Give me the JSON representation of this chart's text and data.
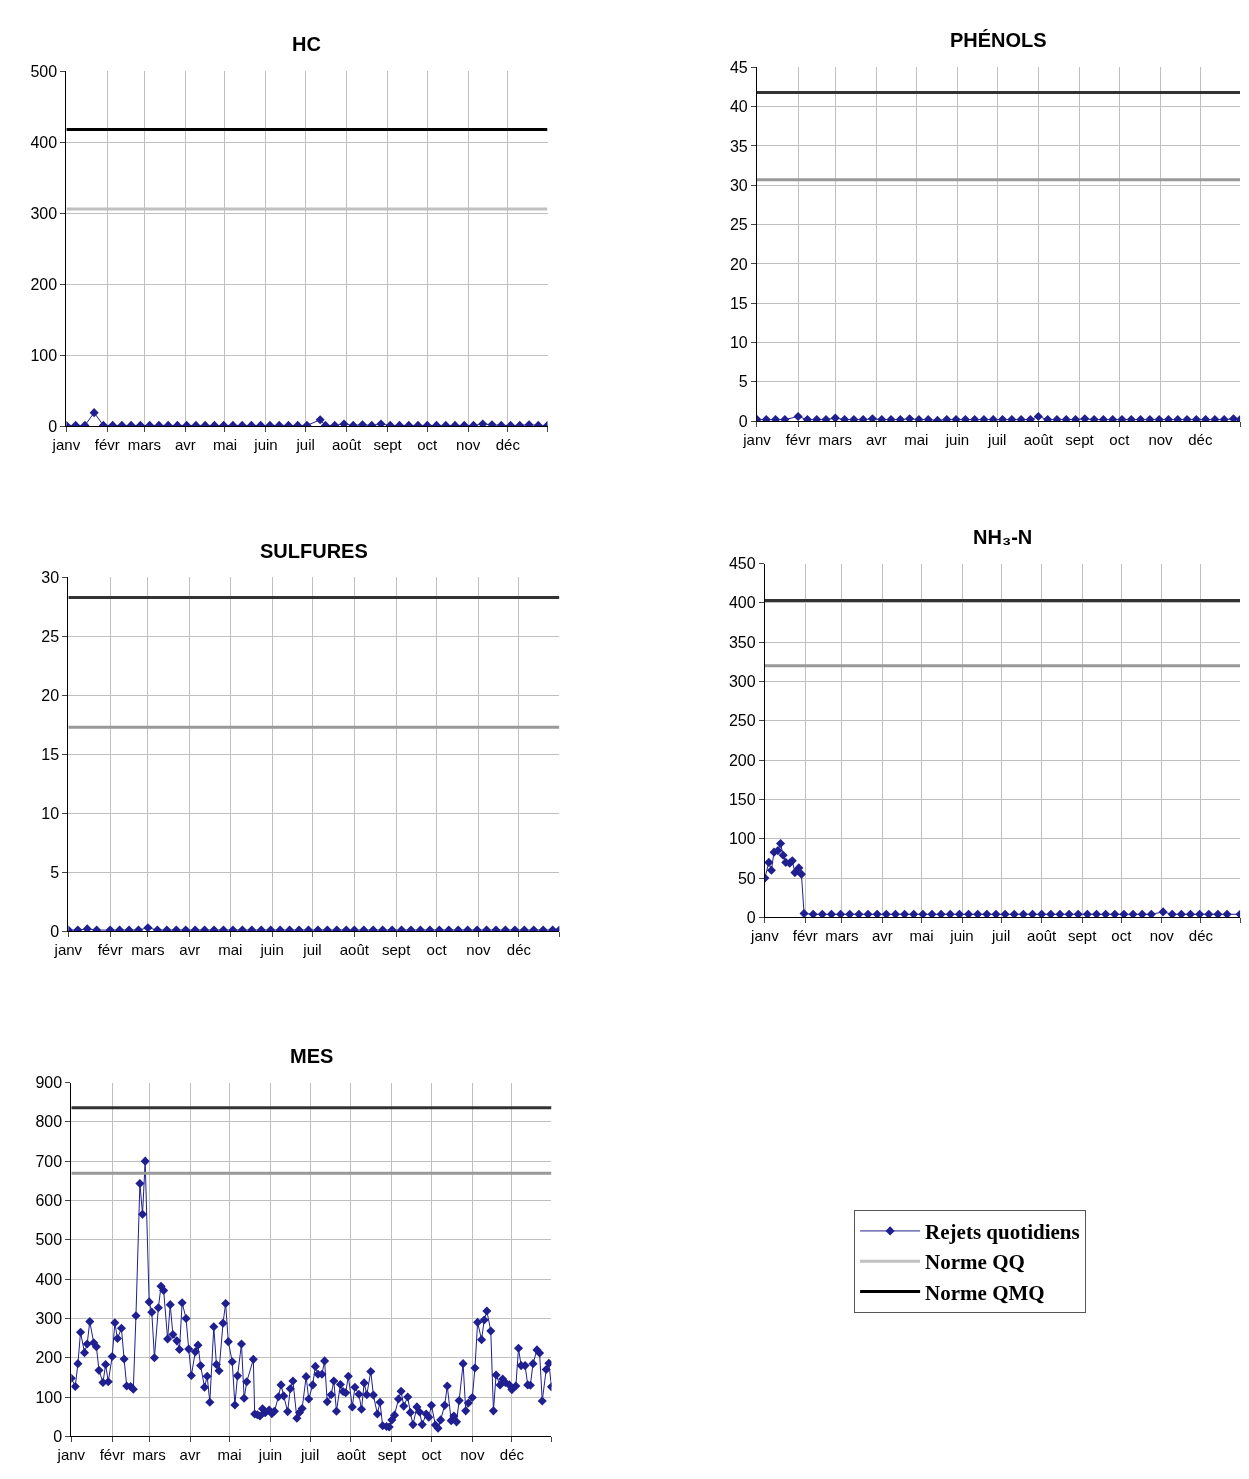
{
  "chart_data": [
    {
      "type": "line",
      "title": "HC",
      "legend": "bottom right",
      "xlim": [
        "--01-01",
        "--12-31"
      ],
      "ylim": [
        0,
        500
      ],
      "yticks": [
        0,
        100,
        200,
        300,
        400,
        500
      ],
      "xticks": [
        {
          "value": "--01-01",
          "label": "janv"
        },
        {
          "value": "--02-01",
          "label": "févr"
        },
        {
          "value": "--03-01",
          "label": "mars"
        },
        {
          "value": "--04-01",
          "label": "avr"
        },
        {
          "value": "--05-01",
          "label": "mai"
        },
        {
          "value": "--06-01",
          "label": "juin"
        },
        {
          "value": "--07-01",
          "label": "juil"
        },
        {
          "value": "--08-01",
          "label": "août"
        },
        {
          "value": "--09-01",
          "label": "sept"
        },
        {
          "value": "--10-01",
          "label": "oct"
        },
        {
          "value": "--11-01",
          "label": "nov"
        },
        {
          "value": "--12-01",
          "label": "déc"
        },
        {
          "value": "--12-31",
          "label": null
        }
      ],
      "grid": true,
      "marker": "diamond",
      "line_style": "solid",
      "series": [
        {
          "name": "Rejets quotidiens",
          "color": "#1f1f8f",
          "x": [
            "--01-01",
            "--01-08",
            "--01-15",
            "--01-22",
            "--01-29",
            "--02-05",
            "--02-12",
            "--02-19",
            "--02-26",
            "--03-05",
            "--03-12",
            "--03-19",
            "--03-26",
            "--04-02",
            "--04-09",
            "--04-16",
            "--04-23",
            "--04-30",
            "--05-07",
            "--05-14",
            "--05-21",
            "--05-28",
            "--06-04",
            "--06-11",
            "--06-18",
            "--06-25",
            "--07-02",
            "--07-12",
            "--07-16",
            "--07-23",
            "--07-30",
            "--08-06",
            "--08-13",
            "--08-20",
            "--08-27",
            "--09-03",
            "--09-10",
            "--09-17",
            "--09-24",
            "--10-01",
            "--10-08",
            "--10-15",
            "--10-22",
            "--10-29",
            "--11-05",
            "--11-12",
            "--11-19",
            "--11-26",
            "--12-03",
            "--12-10",
            "--12-17",
            "--12-24",
            "--12-31"
          ],
          "values": [
            1,
            1,
            1,
            19,
            1,
            1,
            1,
            1,
            1,
            1,
            1,
            1,
            1,
            1,
            1,
            1,
            1,
            1,
            1,
            1,
            1,
            1,
            1,
            1,
            1,
            1,
            1,
            9,
            1,
            1,
            3,
            1,
            2,
            1,
            3,
            1,
            1,
            1,
            1,
            1,
            1,
            1,
            1,
            1,
            1,
            3,
            2,
            1,
            1,
            1,
            2,
            1,
            1
          ]
        }
      ],
      "ref_lines": [
        {
          "axis": "y",
          "value": 306,
          "label": "Norme QQ",
          "color": "#c0c0c0"
        },
        {
          "axis": "y",
          "value": 418,
          "label": "Norme QMQ",
          "color": "#000000"
        }
      ]
    },
    {
      "type": "line",
      "title": "PHÉNOLS",
      "xlim": [
        "--01-01",
        "--12-31"
      ],
      "ylim": [
        0,
        45
      ],
      "yticks": [
        0,
        5,
        10,
        15,
        20,
        25,
        30,
        35,
        40,
        45
      ],
      "xticks": [
        {
          "value": "--01-01",
          "label": "janv"
        },
        {
          "value": "--02-01",
          "label": "févr"
        },
        {
          "value": "--03-01",
          "label": "mars"
        },
        {
          "value": "--04-01",
          "label": "avr"
        },
        {
          "value": "--05-01",
          "label": "mai"
        },
        {
          "value": "--06-01",
          "label": "juin"
        },
        {
          "value": "--07-01",
          "label": "juil"
        },
        {
          "value": "--08-01",
          "label": "août"
        },
        {
          "value": "--09-01",
          "label": "sept"
        },
        {
          "value": "--10-01",
          "label": "oct"
        },
        {
          "value": "--11-01",
          "label": "nov"
        },
        {
          "value": "--12-01",
          "label": "déc"
        },
        {
          "value": "--12-31",
          "label": null
        }
      ],
      "grid": true,
      "marker": "diamond",
      "line_style": "solid",
      "series": [
        {
          "name": "Rejets quotidiens",
          "color": "#1f1f8f",
          "x": [
            "--01-01",
            "--01-08",
            "--01-15",
            "--01-22",
            "--02-01",
            "--02-08",
            "--02-15",
            "--02-22",
            "--03-01",
            "--03-08",
            "--03-15",
            "--03-22",
            "--03-29",
            "--04-05",
            "--04-12",
            "--04-19",
            "--04-26",
            "--05-03",
            "--05-10",
            "--05-17",
            "--05-24",
            "--05-31",
            "--06-07",
            "--06-14",
            "--06-21",
            "--06-28",
            "--07-05",
            "--07-12",
            "--07-19",
            "--07-26",
            "--08-01",
            "--08-08",
            "--08-15",
            "--08-22",
            "--08-29",
            "--09-05",
            "--09-12",
            "--09-19",
            "--09-26",
            "--10-03",
            "--10-10",
            "--10-17",
            "--10-24",
            "--10-31",
            "--11-07",
            "--11-14",
            "--11-21",
            "--11-28",
            "--12-05",
            "--12-12",
            "--12-19",
            "--12-26",
            "--12-31"
          ],
          "values": [
            0.2,
            0.2,
            0.2,
            0.2,
            0.6,
            0.2,
            0.2,
            0.2,
            0.4,
            0.2,
            0.2,
            0.2,
            0.3,
            0.2,
            0.2,
            0.2,
            0.3,
            0.2,
            0.2,
            0.1,
            0.2,
            0.2,
            0.2,
            0.2,
            0.2,
            0.2,
            0.2,
            0.2,
            0.2,
            0.2,
            0.6,
            0.2,
            0.2,
            0.2,
            0.2,
            0.3,
            0.2,
            0.2,
            0.2,
            0.2,
            0.2,
            0.2,
            0.2,
            0.2,
            0.2,
            0.2,
            0.2,
            0.2,
            0.2,
            0.2,
            0.2,
            0.3,
            0.2
          ]
        }
      ],
      "ref_lines": [
        {
          "axis": "y",
          "value": 30.7,
          "color": "#999999"
        },
        {
          "axis": "y",
          "value": 41.8,
          "color": "#333333"
        }
      ]
    },
    {
      "type": "line",
      "title": "SULFURES",
      "xlim": [
        "--01-01",
        "--12-31"
      ],
      "ylim": [
        0,
        30
      ],
      "yticks": [
        0,
        5,
        10,
        15,
        20,
        25,
        30
      ],
      "xticks": [
        {
          "value": "--01-01",
          "label": "janv"
        },
        {
          "value": "--02-01",
          "label": "févr"
        },
        {
          "value": "--03-01",
          "label": "mars"
        },
        {
          "value": "--04-01",
          "label": "avr"
        },
        {
          "value": "--05-01",
          "label": "mai"
        },
        {
          "value": "--06-01",
          "label": "juin"
        },
        {
          "value": "--07-01",
          "label": "juil"
        },
        {
          "value": "--08-01",
          "label": "août"
        },
        {
          "value": "--09-01",
          "label": "sept"
        },
        {
          "value": "--10-01",
          "label": "oct"
        },
        {
          "value": "--11-01",
          "label": "nov"
        },
        {
          "value": "--12-01",
          "label": "déc"
        },
        {
          "value": "--12-31",
          "label": null
        }
      ],
      "grid": true,
      "marker": "diamond",
      "line_style": "solid",
      "series": [
        {
          "name": "Rejets quotidiens",
          "color": "#1f1f8f",
          "x": [
            "--01-01",
            "--01-08",
            "--01-15",
            "--01-22",
            "--02-01",
            "--02-08",
            "--02-15",
            "--02-22",
            "--03-01",
            "--03-08",
            "--03-15",
            "--03-22",
            "--03-29",
            "--04-05",
            "--04-12",
            "--04-19",
            "--04-26",
            "--05-03",
            "--05-10",
            "--05-17",
            "--05-24",
            "--05-31",
            "--06-07",
            "--06-14",
            "--06-21",
            "--06-28",
            "--07-05",
            "--07-12",
            "--07-19",
            "--07-26",
            "--08-01",
            "--08-08",
            "--08-15",
            "--08-22",
            "--08-29",
            "--09-05",
            "--09-12",
            "--09-19",
            "--09-26",
            "--10-03",
            "--10-10",
            "--10-17",
            "--10-24",
            "--10-31",
            "--11-07",
            "--11-14",
            "--11-21",
            "--11-28",
            "--12-05",
            "--12-12",
            "--12-19",
            "--12-26",
            "--12-31"
          ],
          "values": [
            0.1,
            0.1,
            0.2,
            0.1,
            0.1,
            0.1,
            0.1,
            0.1,
            0.3,
            0.1,
            0.1,
            0.1,
            0.1,
            0.1,
            0.1,
            0.1,
            0.1,
            0.1,
            0.1,
            0.1,
            0.1,
            0.1,
            0.1,
            0.1,
            0.1,
            0.1,
            0.1,
            0.1,
            0.1,
            0.1,
            0.1,
            0.1,
            0.1,
            0.1,
            0.1,
            0.1,
            0.1,
            0.1,
            0.1,
            0.1,
            0.1,
            0.1,
            0.1,
            0.1,
            0.1,
            0.1,
            0.1,
            0.1,
            0.1,
            0.1,
            0.1,
            0.1,
            0.1
          ]
        }
      ],
      "ref_lines": [
        {
          "axis": "y",
          "value": 17.3,
          "color": "#999999"
        },
        {
          "axis": "y",
          "value": 28.3,
          "color": "#333333"
        }
      ]
    },
    {
      "type": "line",
      "title": "NH₃-N",
      "xlim": [
        "--01-01",
        "--12-31"
      ],
      "ylim": [
        0,
        450
      ],
      "yticks": [
        0,
        50,
        100,
        150,
        200,
        250,
        300,
        350,
        400,
        450
      ],
      "xticks": [
        {
          "value": "--01-01",
          "label": "janv"
        },
        {
          "value": "--02-01",
          "label": "févr"
        },
        {
          "value": "--03-01",
          "label": "mars"
        },
        {
          "value": "--04-01",
          "label": "avr"
        },
        {
          "value": "--05-01",
          "label": "mai"
        },
        {
          "value": "--06-01",
          "label": "juin"
        },
        {
          "value": "--07-01",
          "label": "juil"
        },
        {
          "value": "--08-01",
          "label": "août"
        },
        {
          "value": "--09-01",
          "label": "sept"
        },
        {
          "value": "--10-01",
          "label": "oct"
        },
        {
          "value": "--11-01",
          "label": "nov"
        },
        {
          "value": "--12-01",
          "label": "déc"
        },
        {
          "value": "--12-31",
          "label": null
        }
      ],
      "grid": true,
      "marker": "diamond",
      "line_style": "solid",
      "series": [
        {
          "name": "Rejets quotidiens",
          "color": "#1f1f8f",
          "x": [
            "--01-01",
            "--01-04",
            "--01-06",
            "--01-08",
            "--01-11",
            "--01-13",
            "--01-15",
            "--01-17",
            "--01-20",
            "--01-22",
            "--01-24",
            "--01-27",
            "--01-29",
            "--01-31",
            "--02-07",
            "--02-14",
            "--02-21",
            "--02-28",
            "--03-07",
            "--03-14",
            "--03-21",
            "--03-28",
            "--04-04",
            "--04-11",
            "--04-18",
            "--04-25",
            "--05-02",
            "--05-09",
            "--05-16",
            "--05-23",
            "--05-30",
            "--06-06",
            "--06-13",
            "--06-20",
            "--06-27",
            "--07-04",
            "--07-11",
            "--07-18",
            "--07-25",
            "--08-01",
            "--08-08",
            "--08-15",
            "--08-22",
            "--08-29",
            "--09-05",
            "--09-12",
            "--09-19",
            "--09-26",
            "--10-03",
            "--10-10",
            "--10-17",
            "--10-24",
            "--11-02",
            "--11-09",
            "--11-16",
            "--11-23",
            "--11-30",
            "--12-07",
            "--12-14",
            "--12-21",
            "--12-31"
          ],
          "values": [
            50,
            70,
            60,
            83,
            85,
            94,
            79,
            70,
            69,
            72,
            57,
            63,
            55,
            5,
            4,
            4,
            4,
            4,
            4,
            4,
            4,
            4,
            4,
            4,
            4,
            4,
            4,
            4,
            4,
            4,
            4,
            4,
            4,
            4,
            4,
            4,
            4,
            4,
            4,
            4,
            4,
            4,
            4,
            4,
            4,
            4,
            4,
            4,
            4,
            4,
            4,
            4,
            7,
            4,
            4,
            4,
            4,
            4,
            4,
            4,
            4
          ]
        }
      ],
      "ref_lines": [
        {
          "axis": "y",
          "value": 320,
          "color": "#999999"
        },
        {
          "axis": "y",
          "value": 403,
          "color": "#333333"
        }
      ]
    },
    {
      "type": "line",
      "title": "MES",
      "xlim": [
        "--01-01",
        "--12-31"
      ],
      "ylim": [
        0,
        900
      ],
      "yticks": [
        0,
        100,
        200,
        300,
        400,
        500,
        600,
        700,
        800,
        900
      ],
      "xticks": [
        {
          "value": "--01-01",
          "label": "janv"
        },
        {
          "value": "--02-01",
          "label": "févr"
        },
        {
          "value": "--03-01",
          "label": "mars"
        },
        {
          "value": "--04-01",
          "label": "avr"
        },
        {
          "value": "--05-01",
          "label": "mai"
        },
        {
          "value": "--06-01",
          "label": "juin"
        },
        {
          "value": "--07-01",
          "label": "juil"
        },
        {
          "value": "--08-01",
          "label": "août"
        },
        {
          "value": "--09-01",
          "label": "sept"
        },
        {
          "value": "--10-01",
          "label": "oct"
        },
        {
          "value": "--11-01",
          "label": "nov"
        },
        {
          "value": "--12-01",
          "label": "déc"
        },
        {
          "value": "--12-31",
          "label": null
        }
      ],
      "grid": true,
      "marker": "diamond",
      "line_style": "solid",
      "series": [
        {
          "name": "Rejets quotidiens",
          "color": "#1f1f8f",
          "x": [
            "--01-01",
            "--01-04",
            "--01-06",
            "--01-08",
            "--01-11",
            "--01-13",
            "--01-15",
            "--01-18",
            "--01-20",
            "--01-22",
            "--01-25",
            "--01-27",
            "--01-29",
            "--02-01",
            "--02-03",
            "--02-05",
            "--02-08",
            "--02-10",
            "--02-12",
            "--02-15",
            "--02-17",
            "--02-19",
            "--02-22",
            "--02-24",
            "--02-26",
            "--03-01",
            "--03-03",
            "--03-05",
            "--03-08",
            "--03-10",
            "--03-12",
            "--03-15",
            "--03-17",
            "--03-19",
            "--03-22",
            "--03-24",
            "--03-26",
            "--03-29",
            "--03-31",
            "--04-02",
            "--04-05",
            "--04-07",
            "--04-09",
            "--04-12",
            "--04-14",
            "--04-16",
            "--04-19",
            "--04-21",
            "--04-23",
            "--04-26",
            "--04-28",
            "--04-30",
            "--05-03",
            "--05-05",
            "--05-07",
            "--05-10",
            "--05-12",
            "--05-14",
            "--05-19",
            "--05-20",
            "--05-22",
            "--05-24",
            "--05-26",
            "--05-28",
            "--05-31",
            "--06-02",
            "--06-04",
            "--06-07",
            "--06-09",
            "--06-11",
            "--06-14",
            "--06-16",
            "--06-18",
            "--06-21",
            "--06-23",
            "--06-25",
            "--06-28",
            "--06-30",
            "--07-03",
            "--07-05",
            "--07-07",
            "--07-10",
            "--07-12",
            "--07-14",
            "--07-17",
            "--07-19",
            "--07-21",
            "--07-24",
            "--07-26",
            "--07-28",
            "--07-30",
            "--08-02",
            "--08-04",
            "--08-07",
            "--08-09",
            "--08-11",
            "--08-13",
            "--08-16",
            "--08-18",
            "--08-21",
            "--08-23",
            "--08-25",
            "--08-28",
            "--08-30",
            "--09-01",
            "--09-03",
            "--09-06",
            "--09-08",
            "--09-10",
            "--09-13",
            "--09-15",
            "--09-17",
            "--09-20",
            "--09-22",
            "--09-24",
            "--09-27",
            "--09-29",
            "--10-01",
            "--10-04",
            "--10-06",
            "--10-08",
            "--10-11",
            "--10-13",
            "--10-16",
            "--10-18",
            "--10-20",
            "--10-22",
            "--10-25",
            "--10-27",
            "--10-29",
            "--11-01",
            "--11-03",
            "--11-05",
            "--11-08",
            "--11-10",
            "--11-12",
            "--11-15",
            "--11-17",
            "--11-19",
            "--11-22",
            "--11-24",
            "--11-26",
            "--11-29",
            "--12-01",
            "--12-04",
            "--12-06",
            "--12-08",
            "--12-11",
            "--12-13",
            "--12-15",
            "--12-17",
            "--12-20",
            "--12-22",
            "--12-24",
            "--12-27",
            "--12-29",
            "--12-31"
          ],
          "values": [
            148,
            127,
            185,
            265,
            213,
            235,
            292,
            238,
            228,
            168,
            137,
            183,
            139,
            203,
            289,
            249,
            275,
            197,
            128,
            127,
            120,
            307,
            643,
            565,
            700,
            342,
            316,
            200,
            327,
            382,
            371,
            248,
            335,
            259,
            243,
            221,
            340,
            300,
            222,
            155,
            215,
            232,
            180,
            125,
            153,
            87,
            279,
            183,
            167,
            288,
            338,
            241,
            190,
            80,
            154,
            235,
            97,
            139,
            196,
            57,
            55,
            52,
            70,
            60,
            67,
            58,
            64,
            101,
            131,
            103,
            63,
            121,
            141,
            46,
            61,
            71,
            152,
            95,
            131,
            178,
            158,
            158,
            192,
            88,
            106,
            141,
            64,
            132,
            114,
            111,
            153,
            75,
            125,
            107,
            69,
            136,
            106,
            165,
            105,
            57,
            87,
            27,
            25,
            24,
            42,
            54,
            95,
            115,
            77,
            100,
            61,
            30,
            75,
            62,
            30,
            57,
            49,
            79,
            29,
            21,
            42,
            79,
            128,
            40,
            52,
            37,
            91,
            185,
            65,
            85,
            99,
            174,
            290,
            246,
            296,
            319,
            268,
            65,
            156,
            131,
            146,
            137,
            131,
            119,
            128,
            224,
            180,
            180,
            131,
            130,
            185,
            220,
            212,
            90,
            170,
            186,
            126
          ]
        }
      ],
      "ref_lines": [
        {
          "axis": "y",
          "value": 669,
          "color": "#999999"
        },
        {
          "axis": "y",
          "value": 836,
          "color": "#333333"
        }
      ]
    }
  ]
}
